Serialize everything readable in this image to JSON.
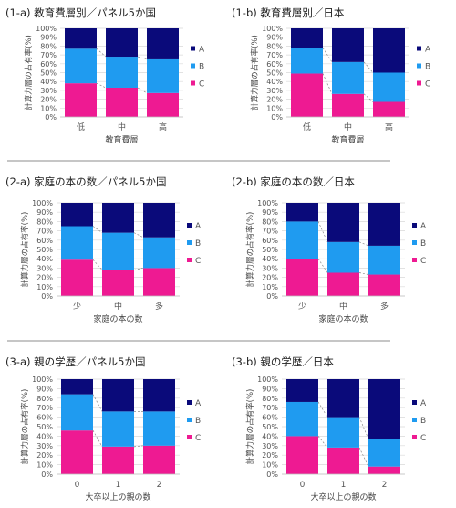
{
  "chart_data": [
    {
      "type": "bar",
      "stacked": true,
      "title": "(1-a) 教育費層別／パネル5か国",
      "xlabel": "教育費層",
      "ylabel": "計算力層の占有率(%)",
      "categories": [
        "低",
        "中",
        "高"
      ],
      "series": [
        {
          "name": "C",
          "values": [
            38,
            33,
            27
          ]
        },
        {
          "name": "B",
          "values": [
            39,
            35,
            38
          ]
        },
        {
          "name": "A",
          "values": [
            23,
            32,
            35
          ]
        }
      ],
      "ylim": [
        0,
        100
      ],
      "yticks": [
        "0%",
        "10%",
        "20%",
        "30%",
        "40%",
        "50%",
        "60%",
        "70%",
        "80%",
        "90%",
        "100%"
      ],
      "legend": [
        "A",
        "B",
        "C"
      ],
      "legend_position": "right"
    },
    {
      "type": "bar",
      "stacked": true,
      "title": "(1-b) 教育費層別／日本",
      "xlabel": "教育費層",
      "ylabel": "計算力層の占有率(%)",
      "categories": [
        "低",
        "中",
        "高"
      ],
      "series": [
        {
          "name": "C",
          "values": [
            49,
            26,
            17
          ]
        },
        {
          "name": "B",
          "values": [
            29,
            36,
            33
          ]
        },
        {
          "name": "A",
          "values": [
            22,
            38,
            50
          ]
        }
      ],
      "ylim": [
        0,
        100
      ],
      "yticks": [
        "0%",
        "10%",
        "20%",
        "30%",
        "40%",
        "50%",
        "60%",
        "70%",
        "80%",
        "90%",
        "100%"
      ],
      "legend": [
        "A",
        "B",
        "C"
      ],
      "legend_position": "right"
    },
    {
      "type": "bar",
      "stacked": true,
      "title": "(2-a) 家庭の本の数／パネル5か国",
      "xlabel": "家庭の本の数",
      "ylabel": "計算力層の占有率(%)",
      "categories": [
        "少",
        "中",
        "多"
      ],
      "series": [
        {
          "name": "C",
          "values": [
            39,
            28,
            30
          ]
        },
        {
          "name": "B",
          "values": [
            36,
            40,
            33
          ]
        },
        {
          "name": "A",
          "values": [
            25,
            32,
            37
          ]
        }
      ],
      "ylim": [
        0,
        100
      ],
      "yticks": [
        "0%",
        "10%",
        "20%",
        "30%",
        "40%",
        "50%",
        "60%",
        "70%",
        "80%",
        "90%",
        "100%"
      ],
      "legend": [
        "A",
        "B",
        "C"
      ],
      "legend_position": "right"
    },
    {
      "type": "bar",
      "stacked": true,
      "title": "(2-b) 家庭の本の数／日本",
      "xlabel": "家庭の本の数",
      "ylabel": "計算力層の占有率(%)",
      "categories": [
        "少",
        "中",
        "多"
      ],
      "series": [
        {
          "name": "C",
          "values": [
            40,
            25,
            23
          ]
        },
        {
          "name": "B",
          "values": [
            40,
            33,
            31
          ]
        },
        {
          "name": "A",
          "values": [
            20,
            42,
            46
          ]
        }
      ],
      "ylim": [
        0,
        100
      ],
      "yticks": [
        "0%",
        "10%",
        "20%",
        "30%",
        "40%",
        "50%",
        "60%",
        "70%",
        "80%",
        "90%",
        "100%"
      ],
      "legend": [
        "A",
        "B",
        "C"
      ],
      "legend_position": "right"
    },
    {
      "type": "bar",
      "stacked": true,
      "title": "(3-a) 親の学歴／パネル5か国",
      "xlabel": "大卒以上の親の数",
      "ylabel": "計算力層の占有率(%)",
      "categories": [
        "0",
        "1",
        "2"
      ],
      "series": [
        {
          "name": "C",
          "values": [
            46,
            29,
            30
          ]
        },
        {
          "name": "B",
          "values": [
            38,
            37,
            36
          ]
        },
        {
          "name": "A",
          "values": [
            16,
            34,
            34
          ]
        }
      ],
      "ylim": [
        0,
        100
      ],
      "yticks": [
        "0%",
        "10%",
        "20%",
        "30%",
        "40%",
        "50%",
        "60%",
        "70%",
        "80%",
        "90%",
        "100%"
      ],
      "legend": [
        "A",
        "B",
        "C"
      ],
      "legend_position": "right"
    },
    {
      "type": "bar",
      "stacked": true,
      "title": "(3-b) 親の学歴／日本",
      "xlabel": "大卒以上の親の数",
      "ylabel": "計算力層の占有率(%)",
      "categories": [
        "0",
        "1",
        "2"
      ],
      "series": [
        {
          "name": "C",
          "values": [
            40,
            28,
            8
          ]
        },
        {
          "name": "B",
          "values": [
            36,
            32,
            29
          ]
        },
        {
          "name": "A",
          "values": [
            24,
            40,
            63
          ]
        }
      ],
      "ylim": [
        0,
        100
      ],
      "yticks": [
        "0%",
        "10%",
        "20%",
        "30%",
        "40%",
        "50%",
        "60%",
        "70%",
        "80%",
        "90%",
        "100%"
      ],
      "legend": [
        "A",
        "B",
        "C"
      ],
      "legend_position": "right"
    }
  ],
  "colors": {
    "A": "#0a0a7a",
    "B": "#1f9bf0",
    "C": "#ee1a92",
    "grid": "#d9d9d9",
    "connector": "#888888"
  }
}
